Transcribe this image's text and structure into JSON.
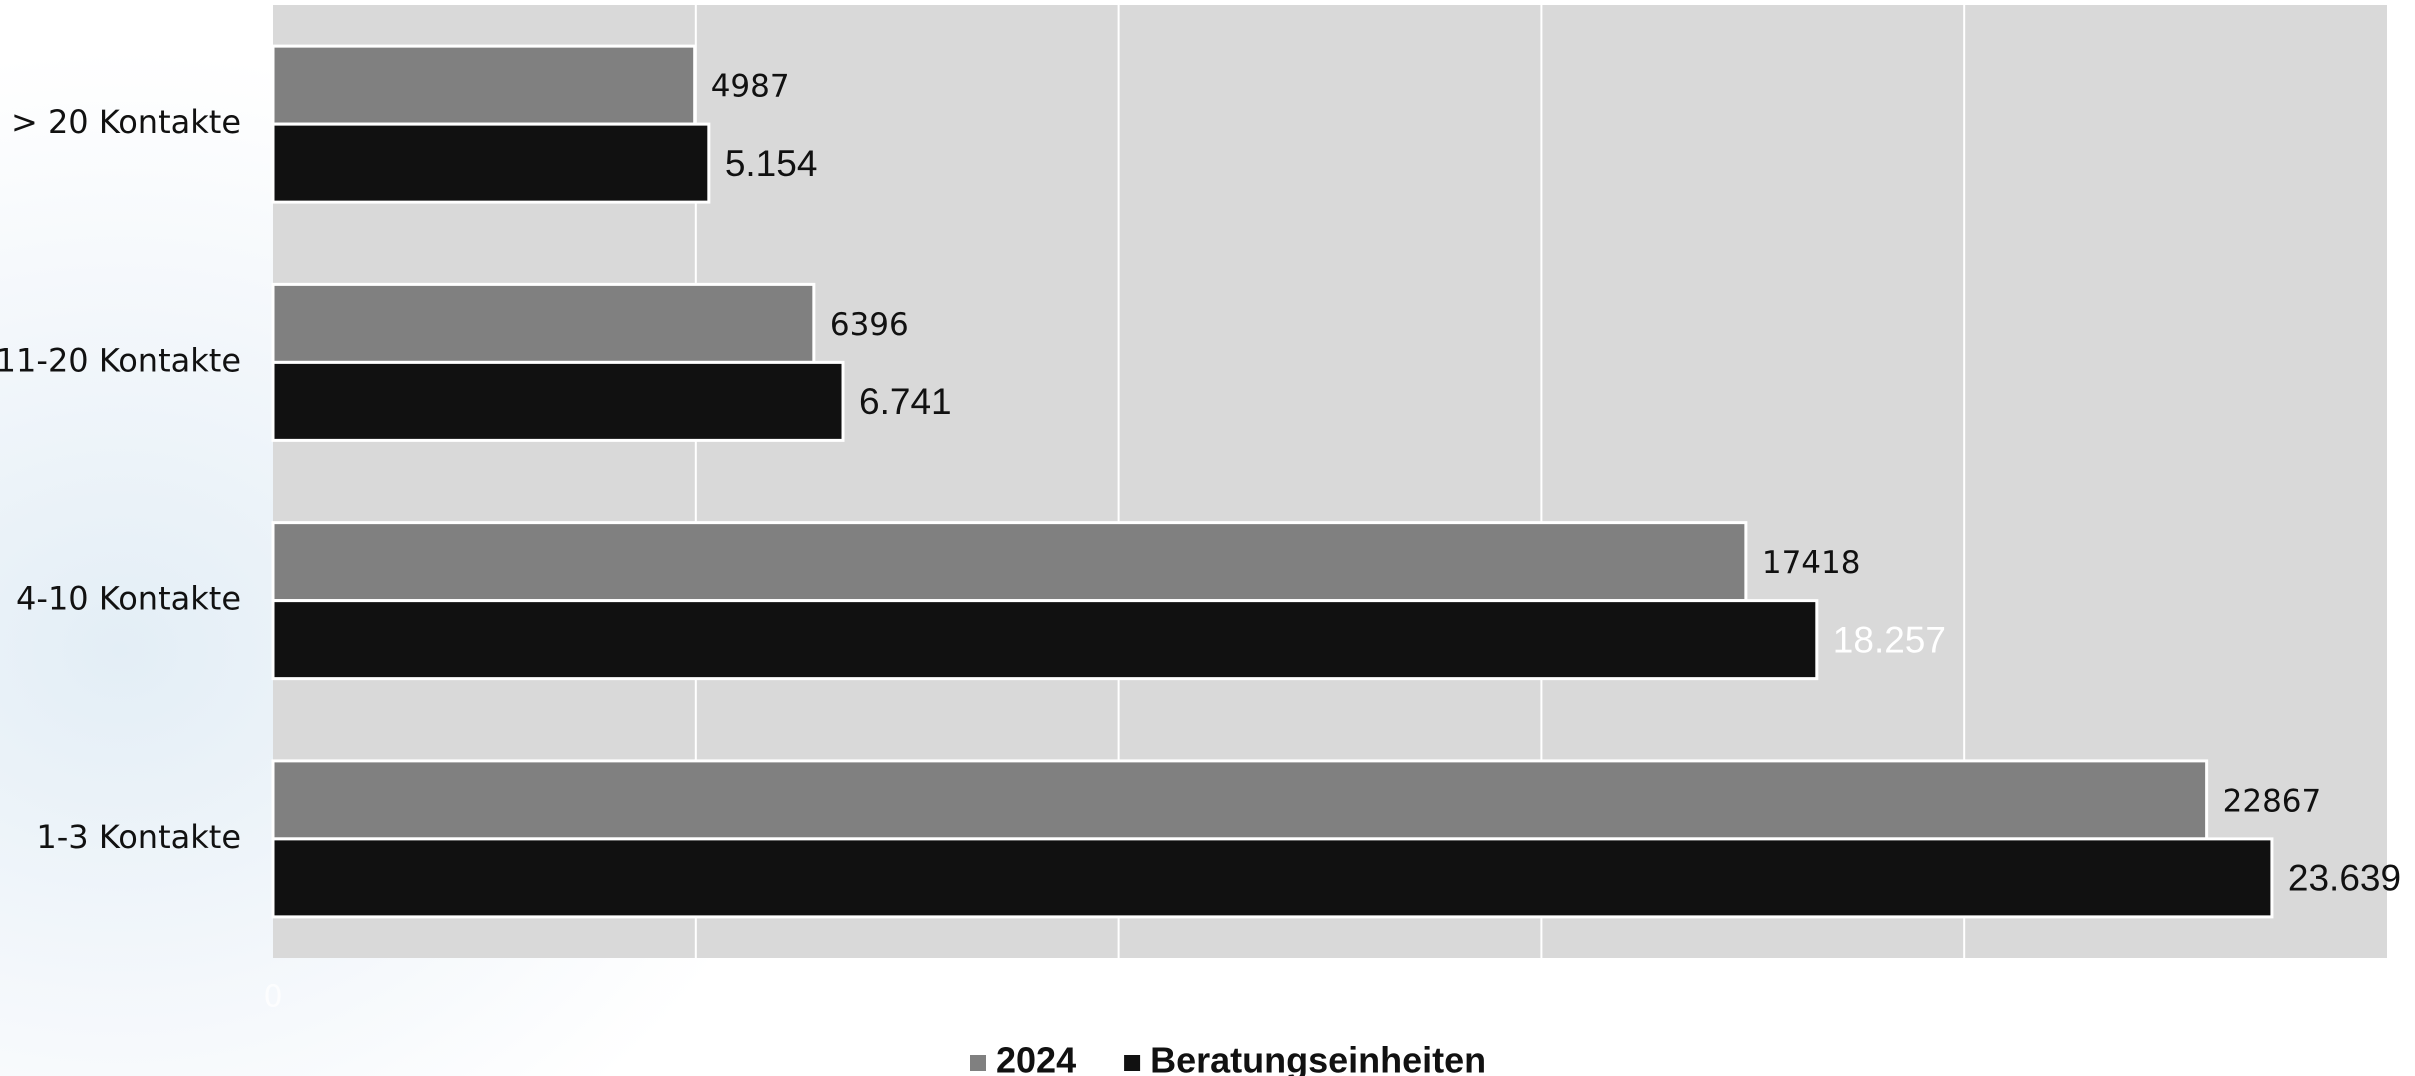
{
  "chart_data": {
    "type": "hbar",
    "categories": [
      "> 20 Kontakte",
      "11-20 Kontakte",
      "4-10 Kontakte",
      "1-3 Kontakte"
    ],
    "series": [
      {
        "name": "2024",
        "color": "#808080",
        "values": [
          4987,
          6396,
          17418,
          22867
        ],
        "label_color": "#111111"
      },
      {
        "name": "Beratungseinheiten",
        "color": "#111111",
        "values": [
          5154,
          6741,
          18257,
          23639
        ],
        "value_labels": [
          "5.154",
          "6.741",
          "18.257",
          "23.639"
        ],
        "label_colors": [
          "#111111",
          "#111111",
          "#ffffff",
          "#111111"
        ]
      }
    ],
    "xlim": [
      0,
      25000
    ],
    "xticks": [
      0,
      5000,
      10000,
      15000,
      20000,
      25000
    ],
    "grid": true,
    "legend": "bottom",
    "plot_background": "#d9d9d9"
  }
}
